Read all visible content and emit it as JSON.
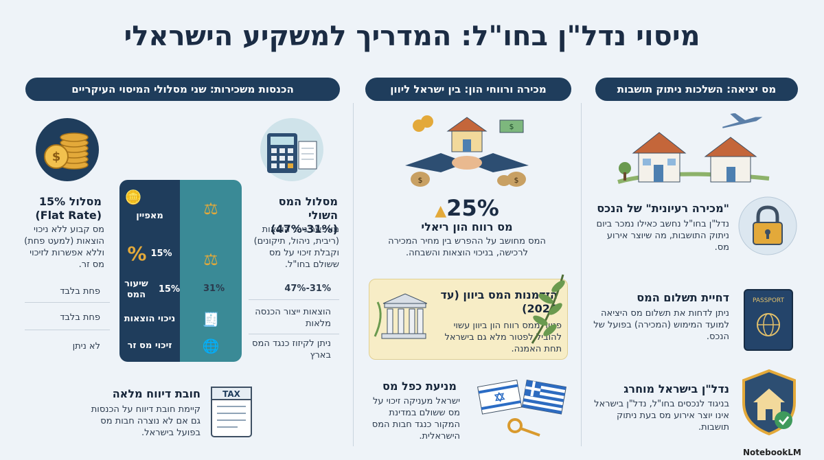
{
  "title": "מיסוי נדל\"ן בחו\"ל: המדריך למשקיע הישראלי",
  "columns": {
    "exit": {
      "header": "מס יציאה: השלכות ניתוק תושבות",
      "items": [
        {
          "title": "\"מכירה רעיונית\" של הנכס",
          "text": "נדל\"ן בחו\"ל נחשב כאילו נמכר ביום ניתוק התושבות, מה שיוצר אירוע מס."
        },
        {
          "title": "דחיית תשלום המס",
          "text": "ניתן לדחות את תשלום מס היציאה למועד המימוש (המכירה) בפועל של הנכס."
        },
        {
          "title": "נדל\"ן בישראל מוחרג",
          "text": "בניגוד לנכסים בחו\"ל, נדל\"ן בישראל אינו יוצר אירוע מס בעת ניתוק תושבות."
        }
      ],
      "passport_label": "PASSPORT"
    },
    "sale": {
      "header": "מכירה ורווחי הון: בין ישראל ליוון",
      "rate": "25%",
      "rate_title": "מס רווח הון ריאלי",
      "rate_text": "המס מחושב על ההפרש בין מחיר המכירה לרכישה, בניכוי הוצאות והשבחה.",
      "opportunity_title": "הזדמנות המס ביוון (עד 2026)",
      "opportunity_text": "פטור ממס רווח הון ביוון עשוי להוביל לפטור מלא גם בישראל תחת האמנה.",
      "double_title": "מניעת כפל מס",
      "double_text": "ישראל מעניקה זיכוי על מס ששולם במדינת המקור כנגד חבות המס הישראלית."
    },
    "rental": {
      "header": "הכנסות משכירות: שני מסלולי המיסוי העיקריים",
      "marginal_title": "מסלול המס השולי (31%-47%)",
      "marginal_text": "מאפשר ניכוי הוצאות (ריבית, ניהול, תיקונים) וקבלת זיכוי על מס ששולם בחו\"ל.",
      "flat_title": "מסלול 15% (Flat Rate)",
      "flat_text": "מס קבוע ללא ניכוי הוצאות (למעט פחת) וללא אפשרות לזיכוי מס זר.",
      "table": {
        "feature_header": "מאפיין",
        "rows": [
          {
            "feature": "שיעור המס",
            "marginal": "31%-47%",
            "flat": "15%"
          },
          {
            "feature": "ניכוי הוצאות",
            "marginal": "הוצאות ייצור הכנסה מלאות",
            "flat": "פחת בלבד"
          },
          {
            "feature": "זיכוי מס זר",
            "marginal": "ניתן לקיזוז כנגד המס בארץ",
            "flat": "לא ניתן"
          }
        ],
        "panel_pct": "15%"
      },
      "reporting_title": "חובת דיווח מלאה",
      "reporting_text": "קיימת חובת דיווח על הכנסות גם אם לא נוצרה חבות מס בפועל בישראל.",
      "tax_label": "TAX"
    }
  },
  "footer": "NotebookLM"
}
